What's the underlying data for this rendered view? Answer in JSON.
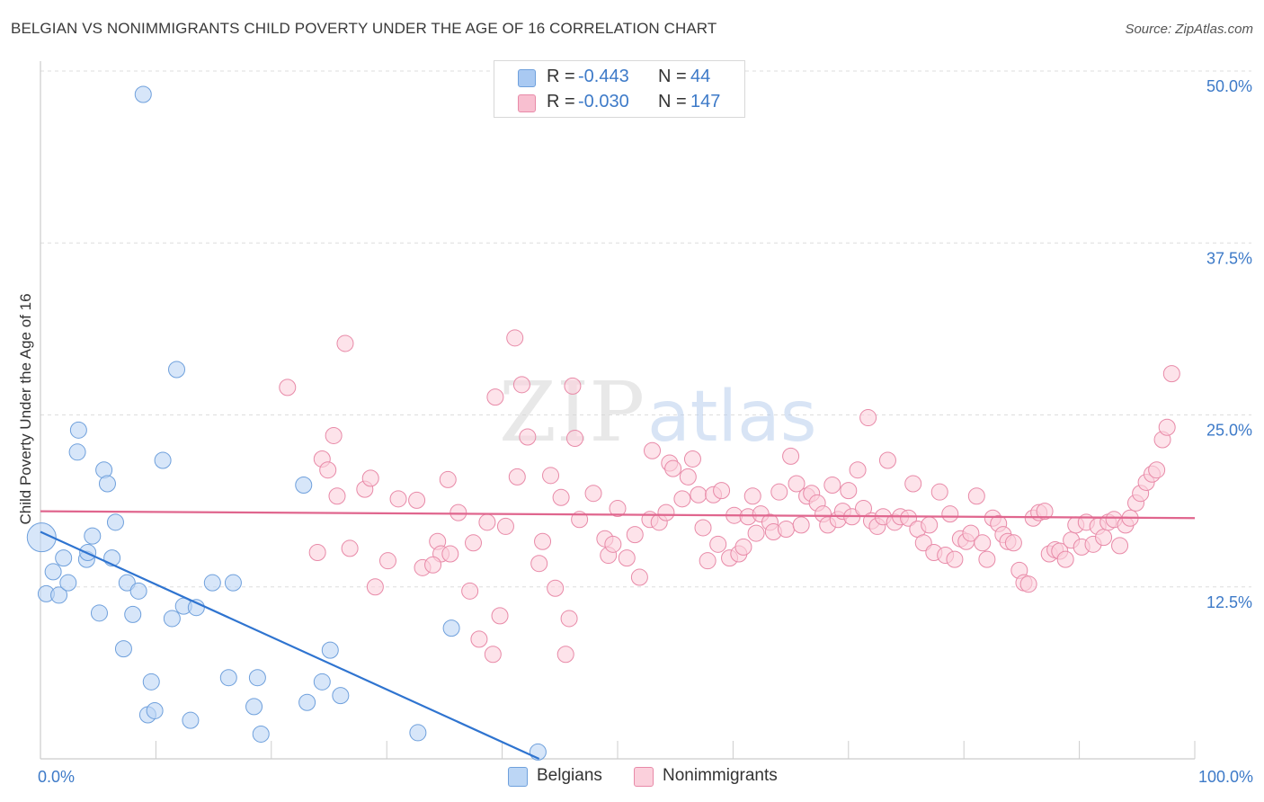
{
  "title": "BELGIAN VS NONIMMIGRANTS CHILD POVERTY UNDER THE AGE OF 16 CORRELATION CHART",
  "source": "Source: ZipAtlas.com",
  "watermark": {
    "zip": "ZIP",
    "atlas": "atlas"
  },
  "legend": {
    "rows": [
      {
        "r_label": "R =",
        "r_value": "-0.443",
        "n_label": "N =",
        "n_value": "44",
        "color": "#a9c9f2",
        "border": "#6fa0dc"
      },
      {
        "r_label": "R =",
        "r_value": "-0.030",
        "n_label": "N =",
        "n_value": "147",
        "color": "#f8bfd0",
        "border": "#e88aa8"
      }
    ],
    "bottom": [
      {
        "label": "Belgians",
        "color": "#bcd6f5",
        "border": "#6fa0dc"
      },
      {
        "label": "Nonimmigrants",
        "color": "#fbd0dc",
        "border": "#e88aa8"
      }
    ]
  },
  "chart_data": {
    "type": "scatter",
    "title": "BELGIAN VS NONIMMIGRANTS CHILD POVERTY UNDER THE AGE OF 16 CORRELATION CHART",
    "xlabel": "",
    "ylabel": "Child Poverty Under the Age of 16",
    "xlim": [
      0,
      100
    ],
    "ylim": [
      0,
      50
    ],
    "x_tick_labels": [
      "0.0%",
      "100.0%"
    ],
    "y_ticks": [
      12.5,
      25.0,
      37.5,
      50.0
    ],
    "y_tick_labels": [
      "12.5%",
      "25.0%",
      "37.5%",
      "50.0%"
    ],
    "grid": "horizontal dashed",
    "legend_position": "top-center",
    "series": [
      {
        "name": "Belgians",
        "color": "#6fa0dc",
        "fill": "#bcd6f5",
        "trendline": {
          "x": [
            0,
            43.2
          ],
          "y": [
            16.5,
            0
          ]
        },
        "points": [
          [
            0.1,
            16.1
          ],
          [
            0.5,
            12.0
          ],
          [
            1.1,
            13.6
          ],
          [
            1.6,
            11.9
          ],
          [
            2.0,
            14.6
          ],
          [
            2.4,
            12.8
          ],
          [
            3.2,
            22.3
          ],
          [
            3.3,
            23.9
          ],
          [
            4.0,
            14.5
          ],
          [
            4.1,
            15.0
          ],
          [
            4.5,
            16.2
          ],
          [
            5.1,
            10.6
          ],
          [
            5.5,
            21.0
          ],
          [
            5.8,
            20.0
          ],
          [
            6.2,
            14.6
          ],
          [
            6.5,
            17.2
          ],
          [
            7.2,
            8.0
          ],
          [
            7.5,
            12.8
          ],
          [
            8.0,
            10.5
          ],
          [
            8.5,
            12.2
          ],
          [
            8.9,
            48.3
          ],
          [
            9.3,
            3.2
          ],
          [
            9.6,
            5.6
          ],
          [
            9.9,
            3.5
          ],
          [
            10.6,
            21.7
          ],
          [
            11.4,
            10.2
          ],
          [
            11.8,
            28.3
          ],
          [
            12.4,
            11.1
          ],
          [
            13.0,
            2.8
          ],
          [
            13.5,
            11.0
          ],
          [
            14.9,
            12.8
          ],
          [
            16.3,
            5.9
          ],
          [
            16.7,
            12.8
          ],
          [
            18.5,
            3.8
          ],
          [
            18.8,
            5.9
          ],
          [
            19.1,
            1.8
          ],
          [
            22.8,
            19.9
          ],
          [
            23.1,
            4.1
          ],
          [
            24.4,
            5.6
          ],
          [
            25.1,
            7.9
          ],
          [
            26.0,
            4.6
          ],
          [
            32.7,
            1.9
          ],
          [
            35.6,
            9.5
          ],
          [
            43.1,
            0.5
          ]
        ]
      },
      {
        "name": "Nonimmigrants",
        "color": "#e88aa8",
        "fill": "#fbd0dc",
        "trendline": {
          "x": [
            0,
            100
          ],
          "y": [
            18.0,
            17.5
          ]
        },
        "points": [
          [
            21.4,
            27.0
          ],
          [
            24.0,
            15.0
          ],
          [
            24.4,
            21.8
          ],
          [
            24.9,
            21.0
          ],
          [
            25.4,
            23.5
          ],
          [
            25.7,
            19.1
          ],
          [
            26.4,
            30.2
          ],
          [
            26.8,
            15.3
          ],
          [
            28.1,
            19.6
          ],
          [
            28.6,
            20.4
          ],
          [
            29.0,
            12.5
          ],
          [
            30.1,
            14.4
          ],
          [
            31.0,
            18.9
          ],
          [
            32.6,
            18.8
          ],
          [
            33.1,
            13.9
          ],
          [
            34.4,
            15.8
          ],
          [
            34.7,
            14.9
          ],
          [
            35.3,
            20.3
          ],
          [
            35.5,
            14.9
          ],
          [
            36.2,
            17.9
          ],
          [
            37.2,
            12.2
          ],
          [
            37.5,
            15.7
          ],
          [
            38.0,
            8.7
          ],
          [
            38.7,
            17.2
          ],
          [
            39.2,
            7.6
          ],
          [
            39.4,
            26.3
          ],
          [
            39.8,
            10.4
          ],
          [
            40.3,
            16.9
          ],
          [
            41.1,
            30.6
          ],
          [
            41.3,
            20.5
          ],
          [
            41.7,
            27.2
          ],
          [
            42.2,
            23.4
          ],
          [
            43.2,
            14.2
          ],
          [
            43.5,
            15.8
          ],
          [
            44.2,
            20.6
          ],
          [
            44.6,
            12.4
          ],
          [
            45.1,
            19.0
          ],
          [
            45.5,
            7.6
          ],
          [
            45.8,
            10.2
          ],
          [
            46.1,
            27.1
          ],
          [
            46.3,
            23.3
          ],
          [
            46.7,
            17.4
          ],
          [
            47.9,
            19.3
          ],
          [
            48.9,
            16.0
          ],
          [
            49.2,
            14.8
          ],
          [
            49.6,
            15.6
          ],
          [
            50.0,
            18.2
          ],
          [
            50.8,
            14.6
          ],
          [
            51.5,
            16.3
          ],
          [
            51.9,
            13.2
          ],
          [
            52.8,
            17.4
          ],
          [
            53.0,
            22.4
          ],
          [
            53.6,
            17.2
          ],
          [
            54.2,
            17.9
          ],
          [
            54.5,
            21.5
          ],
          [
            54.8,
            21.1
          ],
          [
            55.6,
            18.9
          ],
          [
            56.1,
            20.5
          ],
          [
            56.5,
            21.8
          ],
          [
            57.0,
            19.2
          ],
          [
            57.4,
            16.8
          ],
          [
            57.8,
            14.4
          ],
          [
            58.3,
            19.2
          ],
          [
            58.7,
            15.6
          ],
          [
            59.0,
            19.5
          ],
          [
            59.7,
            14.6
          ],
          [
            60.1,
            17.7
          ],
          [
            60.5,
            14.9
          ],
          [
            60.9,
            15.4
          ],
          [
            61.3,
            17.6
          ],
          [
            61.7,
            19.1
          ],
          [
            62.0,
            16.4
          ],
          [
            62.4,
            17.8
          ],
          [
            63.2,
            17.2
          ],
          [
            63.5,
            16.5
          ],
          [
            64.0,
            19.4
          ],
          [
            64.6,
            16.7
          ],
          [
            65.0,
            22.0
          ],
          [
            65.5,
            20.0
          ],
          [
            65.9,
            17.0
          ],
          [
            66.4,
            19.1
          ],
          [
            66.8,
            19.3
          ],
          [
            67.3,
            18.6
          ],
          [
            67.8,
            17.8
          ],
          [
            68.2,
            17.0
          ],
          [
            68.6,
            19.9
          ],
          [
            69.1,
            17.4
          ],
          [
            69.5,
            18.0
          ],
          [
            70.0,
            19.5
          ],
          [
            70.3,
            17.6
          ],
          [
            70.8,
            21.0
          ],
          [
            71.3,
            18.2
          ],
          [
            71.7,
            24.8
          ],
          [
            72.0,
            17.3
          ],
          [
            72.5,
            16.9
          ],
          [
            73.0,
            17.6
          ],
          [
            73.4,
            21.7
          ],
          [
            74.0,
            17.2
          ],
          [
            74.5,
            17.6
          ],
          [
            75.2,
            17.5
          ],
          [
            75.6,
            20.0
          ],
          [
            76.0,
            16.7
          ],
          [
            76.5,
            15.7
          ],
          [
            77.0,
            17.0
          ],
          [
            77.4,
            15.0
          ],
          [
            77.9,
            19.4
          ],
          [
            78.4,
            14.8
          ],
          [
            78.8,
            17.8
          ],
          [
            79.2,
            14.5
          ],
          [
            79.7,
            16.0
          ],
          [
            80.2,
            15.8
          ],
          [
            80.6,
            16.4
          ],
          [
            81.1,
            19.1
          ],
          [
            81.6,
            15.7
          ],
          [
            82.0,
            14.5
          ],
          [
            82.5,
            17.5
          ],
          [
            83.0,
            17.1
          ],
          [
            83.4,
            16.3
          ],
          [
            83.8,
            15.8
          ],
          [
            84.3,
            15.7
          ],
          [
            84.8,
            13.7
          ],
          [
            85.2,
            12.8
          ],
          [
            85.6,
            12.7
          ],
          [
            86.0,
            17.5
          ],
          [
            86.5,
            17.9
          ],
          [
            87.0,
            18.0
          ],
          [
            87.4,
            14.9
          ],
          [
            87.9,
            15.2
          ],
          [
            88.3,
            15.1
          ],
          [
            88.8,
            14.5
          ],
          [
            89.3,
            15.9
          ],
          [
            89.7,
            17.0
          ],
          [
            90.2,
            15.4
          ],
          [
            90.6,
            17.2
          ],
          [
            91.2,
            15.6
          ],
          [
            91.6,
            16.9
          ],
          [
            92.1,
            16.1
          ],
          [
            92.5,
            17.2
          ],
          [
            93.0,
            17.4
          ],
          [
            93.5,
            15.5
          ],
          [
            94.0,
            17.0
          ],
          [
            94.4,
            17.5
          ],
          [
            94.9,
            18.6
          ],
          [
            95.3,
            19.3
          ],
          [
            95.8,
            20.1
          ],
          [
            96.3,
            20.7
          ],
          [
            96.7,
            21.0
          ],
          [
            97.2,
            23.2
          ],
          [
            97.6,
            24.1
          ],
          [
            98.0,
            28.0
          ],
          [
            34.0,
            14.1
          ]
        ]
      }
    ]
  }
}
